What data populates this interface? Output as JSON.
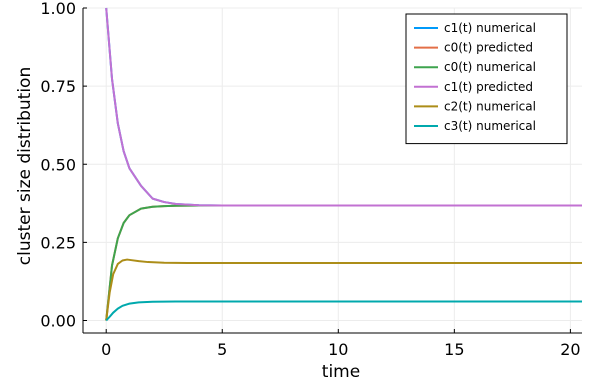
{
  "chart_data": {
    "type": "line",
    "xlabel": "time",
    "ylabel": "cluster size distribution",
    "xlim": [
      -1,
      20.5
    ],
    "ylim": [
      -0.04,
      1.0
    ],
    "xticks": [
      0,
      5,
      10,
      15,
      20
    ],
    "xtick_labels": [
      "0",
      "5",
      "10",
      "15",
      "20"
    ],
    "yticks": [
      0.0,
      0.25,
      0.5,
      0.75,
      1.0
    ],
    "ytick_labels": [
      "0.00",
      "0.25",
      "0.50",
      "0.75",
      "1.00"
    ],
    "grid": true,
    "legend_position": "top-right",
    "series": [
      {
        "name": "c1(t) numerical",
        "color": "#009AFA",
        "x": [
          0,
          0.25,
          0.5,
          0.75,
          1.0,
          1.5,
          2.0,
          2.5,
          3.0,
          4.0,
          5.0,
          10.0,
          15.0,
          20.5
        ],
        "y": [
          1.0,
          0.773,
          0.631,
          0.542,
          0.487,
          0.431,
          0.39,
          0.379,
          0.373,
          0.369,
          0.368,
          0.368,
          0.368,
          0.368
        ]
      },
      {
        "name": "c0(t) predicted",
        "color": "#E36F47",
        "x": [
          0,
          0.25,
          0.5,
          0.75,
          1.0,
          1.5,
          2.0,
          2.5,
          3.0,
          4.0,
          5.0,
          10.0,
          15.0,
          20.5
        ],
        "y": [
          0.0,
          0.176,
          0.263,
          0.312,
          0.337,
          0.358,
          0.364,
          0.366,
          0.367,
          0.368,
          0.368,
          0.368,
          0.368,
          0.368
        ]
      },
      {
        "name": "c0(t) numerical",
        "color": "#3EA44E",
        "x": [
          0,
          0.25,
          0.5,
          0.75,
          1.0,
          1.5,
          2.0,
          2.5,
          3.0,
          4.0,
          5.0,
          10.0,
          15.0,
          20.5
        ],
        "y": [
          0.0,
          0.176,
          0.263,
          0.312,
          0.337,
          0.358,
          0.364,
          0.366,
          0.367,
          0.368,
          0.368,
          0.368,
          0.368,
          0.368
        ]
      },
      {
        "name": "c1(t) predicted",
        "color": "#C271D2",
        "x": [
          0,
          0.25,
          0.5,
          0.75,
          1.0,
          1.5,
          2.0,
          2.5,
          3.0,
          4.0,
          5.0,
          10.0,
          15.0,
          20.5
        ],
        "y": [
          1.0,
          0.773,
          0.631,
          0.542,
          0.487,
          0.431,
          0.39,
          0.379,
          0.373,
          0.369,
          0.368,
          0.368,
          0.368,
          0.368
        ]
      },
      {
        "name": "c2(t) numerical",
        "color": "#AC8D18",
        "x": [
          0,
          0.15,
          0.3,
          0.5,
          0.7,
          0.9,
          1.1,
          1.4,
          1.8,
          2.5,
          3.5,
          5.0,
          10.0,
          15.0,
          20.5
        ],
        "y": [
          0.0,
          0.09,
          0.148,
          0.181,
          0.192,
          0.195,
          0.193,
          0.19,
          0.187,
          0.185,
          0.184,
          0.184,
          0.184,
          0.184,
          0.184
        ]
      },
      {
        "name": "c3(t) numerical",
        "color": "#00A9AD",
        "x": [
          0,
          0.15,
          0.3,
          0.5,
          0.7,
          1.0,
          1.4,
          2.0,
          3.0,
          5.0,
          10.0,
          15.0,
          20.5
        ],
        "y": [
          0.0,
          0.012,
          0.025,
          0.038,
          0.047,
          0.054,
          0.058,
          0.06,
          0.061,
          0.061,
          0.061,
          0.061,
          0.061
        ]
      }
    ]
  }
}
